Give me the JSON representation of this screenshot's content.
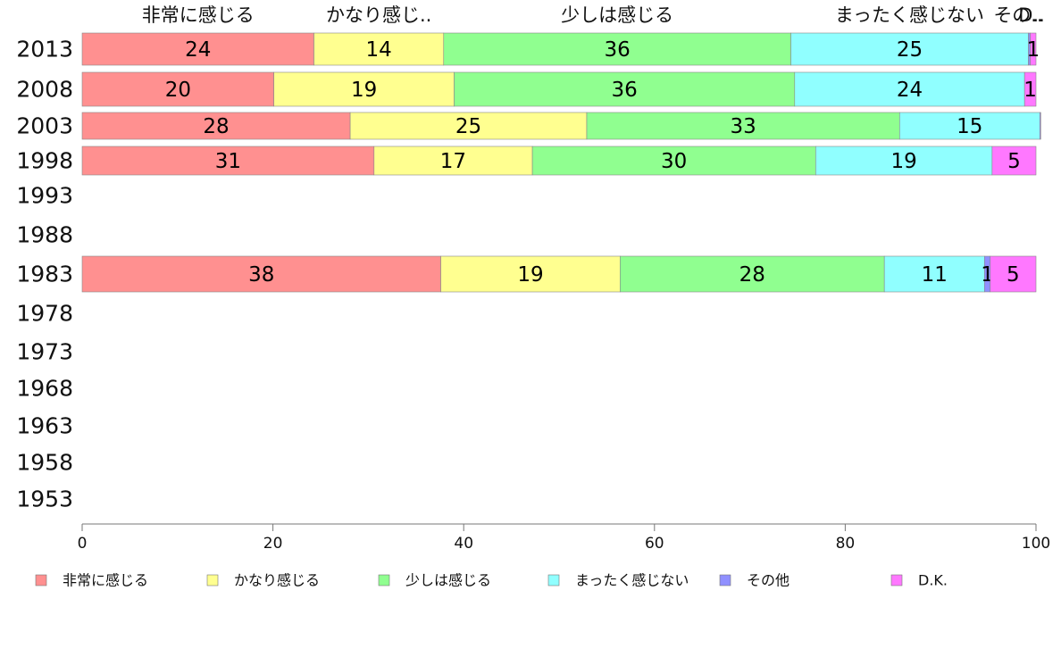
{
  "chart_data": {
    "type": "bar",
    "orientation": "horizontal",
    "stacked": true,
    "categories": [
      "2013",
      "2008",
      "2003",
      "1998",
      "1993",
      "1988",
      "1983",
      "1978",
      "1973",
      "1968",
      "1963",
      "1958",
      "1953"
    ],
    "series": [
      {
        "name": "非常に感じる",
        "color": "#ff9090",
        "values": [
          24.3,
          20.1,
          28.1,
          30.6,
          null,
          null,
          37.6,
          null,
          null,
          null,
          null,
          null,
          null
        ]
      },
      {
        "name": "かなり感じる",
        "color": "#ffff90",
        "values": [
          13.6,
          18.9,
          24.8,
          16.6,
          null,
          null,
          18.8,
          null,
          null,
          null,
          null,
          null,
          null
        ]
      },
      {
        "name": "少しは感じる",
        "color": "#90ff90",
        "values": [
          36.4,
          35.7,
          32.8,
          29.7,
          null,
          null,
          27.7,
          null,
          null,
          null,
          null,
          null,
          null
        ]
      },
      {
        "name": "まったく感じない",
        "color": "#90ffff",
        "values": [
          24.9,
          24.1,
          14.7,
          18.5,
          null,
          null,
          10.5,
          null,
          null,
          null,
          null,
          null,
          null
        ]
      },
      {
        "name": "その他",
        "color": "#9090ff",
        "values": [
          0.2,
          0.0,
          0.1,
          0.0,
          null,
          null,
          0.6,
          null,
          null,
          null,
          null,
          null,
          null
        ]
      },
      {
        "name": "D.K.",
        "color": "#ff78ff",
        "values": [
          0.6,
          1.2,
          0.0,
          4.6,
          null,
          null,
          4.8,
          null,
          null,
          null,
          null,
          null,
          null
        ]
      }
    ],
    "top_labels": [
      "非常に感じる",
      "かなり感じ..",
      "少しは感じる",
      "まったく感じない",
      "その..",
      "D.."
    ],
    "xlim": [
      0,
      100
    ],
    "xticks": [
      0,
      20,
      40,
      60,
      80,
      100
    ],
    "grid": false,
    "legend_position": "bottom"
  }
}
